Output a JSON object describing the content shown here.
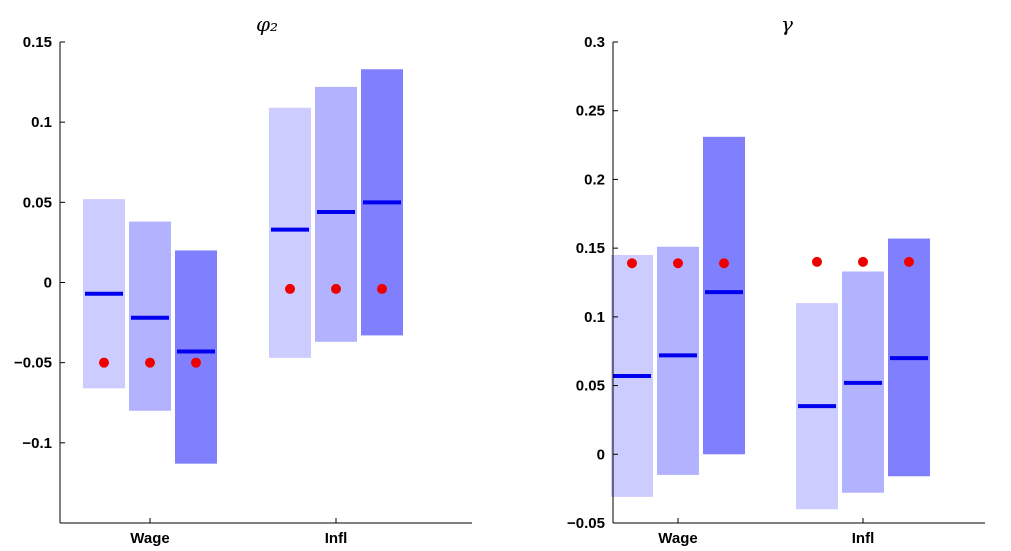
{
  "chart_data": [
    {
      "type": "bar",
      "title": "φ₂",
      "categories": [
        "Wage",
        "Infl"
      ],
      "ylim": [
        -0.15,
        0.15
      ],
      "yticks": [
        -0.1,
        -0.05,
        0,
        0.05,
        0.1,
        0.15
      ],
      "ytick_labels": [
        "−0.1",
        "−0.05",
        "0",
        "0.05",
        "0.1",
        "0.15"
      ],
      "grid": false,
      "series": [
        {
          "color": "#ccccff",
          "low": [
            -0.066,
            -0.047
          ],
          "high": [
            0.052,
            0.109
          ],
          "median": [
            -0.007,
            0.033
          ],
          "point": [
            -0.05,
            -0.004
          ]
        },
        {
          "color": "#b2b2ff",
          "low": [
            -0.08,
            -0.037
          ],
          "high": [
            0.038,
            0.122
          ],
          "median": [
            -0.022,
            0.044
          ],
          "point": [
            -0.05,
            -0.004
          ]
        },
        {
          "color": "#8080ff",
          "low": [
            -0.113,
            -0.033
          ],
          "high": [
            0.02,
            0.133
          ],
          "median": [
            -0.043,
            0.05
          ],
          "point": [
            -0.05,
            -0.004
          ]
        }
      ]
    },
    {
      "type": "bar",
      "title": "γ",
      "categories": [
        "Wage",
        "Infl"
      ],
      "ylim": [
        -0.05,
        0.3
      ],
      "yticks": [
        -0.05,
        0,
        0.05,
        0.1,
        0.15,
        0.2,
        0.25,
        0.3
      ],
      "ytick_labels": [
        "−0.05",
        "0",
        "0.05",
        "0.1",
        "0.15",
        "0.2",
        "0.25",
        "0.3"
      ],
      "grid": false,
      "series": [
        {
          "color": "#ccccff",
          "low": [
            -0.031,
            -0.04
          ],
          "high": [
            0.145,
            0.11
          ],
          "median": [
            0.057,
            0.035
          ],
          "point": [
            0.139,
            0.14
          ]
        },
        {
          "color": "#b2b2ff",
          "low": [
            -0.015,
            -0.028
          ],
          "high": [
            0.151,
            0.133
          ],
          "median": [
            0.072,
            0.052
          ],
          "point": [
            0.139,
            0.14
          ]
        },
        {
          "color": "#8080ff",
          "low": [
            0.0,
            -0.016
          ],
          "high": [
            0.231,
            0.157
          ],
          "median": [
            0.118,
            0.07
          ],
          "point": [
            0.139,
            0.14
          ]
        }
      ]
    }
  ],
  "style": {
    "median_color": "#0000ee",
    "point_color": "#ee0000",
    "axis_color": "#000000"
  }
}
